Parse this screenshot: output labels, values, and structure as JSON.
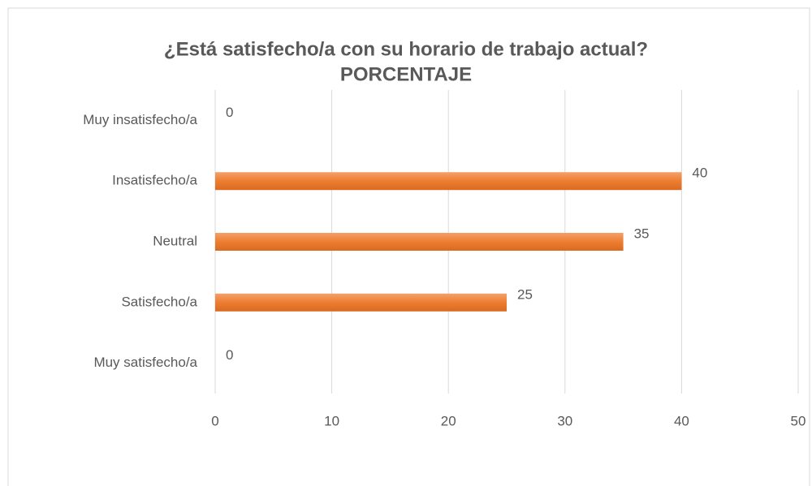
{
  "chart_data": {
    "type": "bar",
    "orientation": "horizontal",
    "title": "¿Está satisfecho/a con su horario de trabajo actual?",
    "subtitle": "PORCENTAJE",
    "categories": [
      "Muy insatisfecho/a",
      "Insatisfecho/a",
      "Neutral",
      "Satisfecho/a",
      "Muy satisfecho/a"
    ],
    "values": [
      0,
      40,
      35,
      25,
      0
    ],
    "color": "#ed7d31",
    "xlim": [
      0,
      50
    ],
    "xticks": [
      0,
      10,
      20,
      30,
      40,
      50
    ],
    "grid": true
  }
}
